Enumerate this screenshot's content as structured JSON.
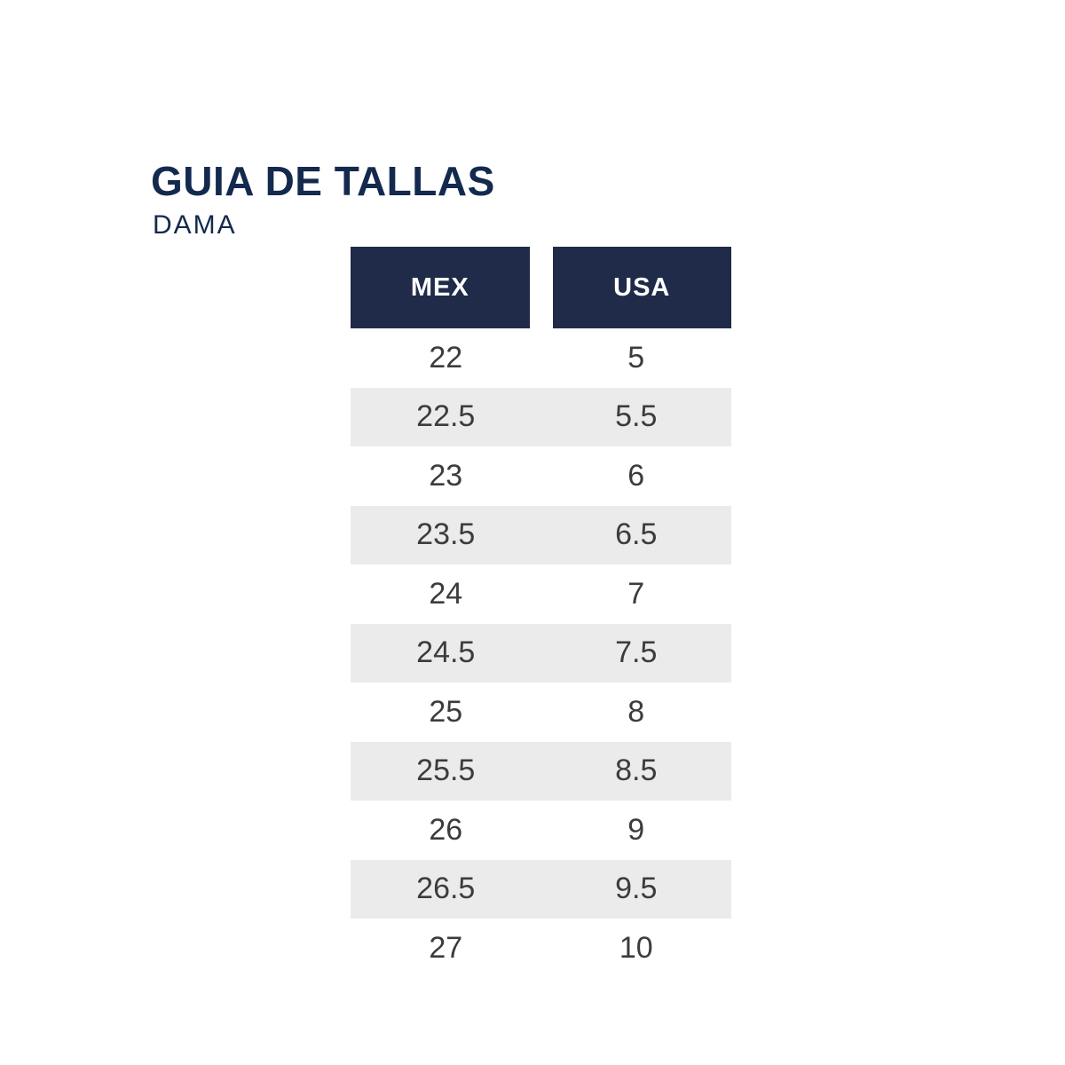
{
  "page": {
    "background": "#ffffff"
  },
  "header": {
    "title": "GUIA DE TALLAS",
    "subtitle": "DAMA"
  },
  "colors": {
    "navy_header": "#1f2b49",
    "title_navy": "#14294e",
    "alt_row_gray": "#ebebec",
    "cell_text": "#3c3c3c",
    "header_text": "#ffffff",
    "page_bg": "#ffffff"
  },
  "chart_data": {
    "type": "table",
    "title": "GUIA DE TALLAS",
    "subtitle": "DAMA",
    "columns": [
      "MEX",
      "USA"
    ],
    "rows": [
      [
        "22",
        "5"
      ],
      [
        "22.5",
        "5.5"
      ],
      [
        "23",
        "6"
      ],
      [
        "23.5",
        "6.5"
      ],
      [
        "24",
        "7"
      ],
      [
        "24.5",
        "7.5"
      ],
      [
        "25",
        "8"
      ],
      [
        "25.5",
        "8.5"
      ],
      [
        "26",
        "9"
      ],
      [
        "26.5",
        "9.5"
      ],
      [
        "27",
        "10"
      ]
    ],
    "layout_hints": {
      "header_style": "two separate navy boxes with a gap between columns",
      "row_shading": "alternating white and light gray, starting white",
      "alignment": "all values centered"
    }
  }
}
